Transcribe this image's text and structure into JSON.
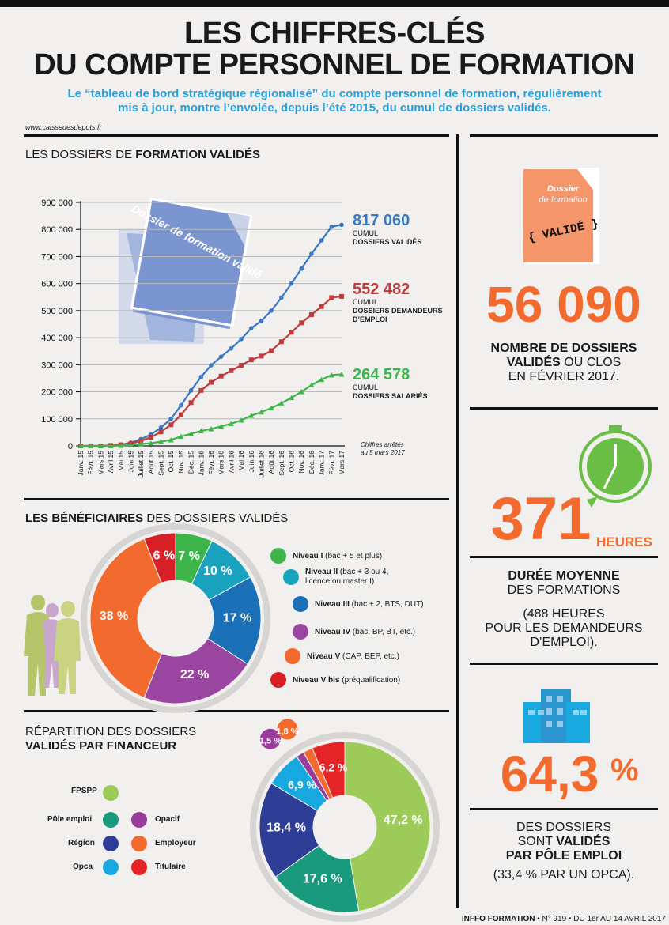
{
  "header": {
    "title_line1": "LES CHIFFRES-CLÉS",
    "title_line2": "DU COMPTE PERSONNEL DE FORMATION",
    "subtitle_line1": "Le “tableau de bord stratégique régionalisé” du compte personnel de formation, régulièrement",
    "subtitle_line2": "mis à jour, montre l’envolée, depuis l’été 2015, du cumul de dossiers validés.",
    "source": "www.caissedesdepots.fr"
  },
  "section1": {
    "title_plain": "LES DOSSIERS DE ",
    "title_bold": "FORMATION VALIDÉS",
    "illustration_text": "Dossier de formation validé",
    "note_line1": "Chiffres arrêtés",
    "note_line2": "au 5 mars 2017",
    "series_labels": [
      {
        "value": "817 060",
        "sub1": "CUMUL",
        "sub2": "DOSSIERS VALIDÉS",
        "sub3": ""
      },
      {
        "value": "552 482",
        "sub1": "CUMUL",
        "sub2": "DOSSIERS DEMANDEURS",
        "sub3": "D’EMPLOI"
      },
      {
        "value": "264 578",
        "sub1": "CUMUL",
        "sub2": "DOSSIERS SALARIÉS",
        "sub3": ""
      }
    ]
  },
  "section2": {
    "title_bold": "LES BÉNÉFICIAIRES",
    "title_plain": " DES DOSSIERS VALIDÉS",
    "legend": [
      {
        "bold": "Niveau I",
        "rest": " (bac + 5 et plus)",
        "rest2": "",
        "color": "#3db54a"
      },
      {
        "bold": "Niveau II",
        "rest": " (bac + 3 ou 4,",
        "rest2": "licence ou master I)",
        "color": "#19a3bf"
      },
      {
        "bold": "Niveau III",
        "rest": " (bac + 2, BTS, DUT)",
        "rest2": "",
        "color": "#1b70b8"
      },
      {
        "bold": "Niveau IV",
        "rest": " (bac, BP, BT, etc.)",
        "rest2": "",
        "color": "#9a45a0"
      },
      {
        "bold": "Niveau V",
        "rest": " (CAP, BEP, etc.)",
        "rest2": "",
        "color": "#f26a2e"
      },
      {
        "bold": "Niveau V bis",
        "rest": " (préqualification)",
        "rest2": "",
        "color": "#d71f26"
      }
    ]
  },
  "section3": {
    "title_line1": "RÉPARTITION DES DOSSIERS",
    "title_line2": "VALIDÉS PAR FINANCEUR",
    "legend_left": [
      {
        "label": "FPSPP",
        "color": "#9ccb5a"
      },
      {
        "label": "Pôle emploi",
        "color": "#199a7c"
      },
      {
        "label": "Région",
        "color": "#2e3e96"
      },
      {
        "label": "Opca",
        "color": "#18a8e0"
      }
    ],
    "legend_right": [
      {
        "label": "Opacif",
        "color": "#9a3c9c"
      },
      {
        "label": "Employeur",
        "color": "#f26a2e"
      },
      {
        "label": "Titulaire",
        "color": "#e52428"
      }
    ]
  },
  "right": {
    "folder_text1": "Dossier",
    "folder_text2": "de formation",
    "folder_stamp": "{ VALIDÉ }",
    "stat1_value": "56 090",
    "stat1_line1": "NOMBRE DE DOSSIERS",
    "stat1_line2_bold": "VALIDÉS",
    "stat1_line2_rest": " OU CLOS",
    "stat1_line3": "EN FÉVRIER 2017.",
    "stat2_value": "371",
    "stat2_unit": "HEURES",
    "stat2_line1": "DURÉE MOYENNE",
    "stat2_line2": "DES FORMATIONS",
    "stat2_line3": "(488 HEURES",
    "stat2_line4": "POUR LES DEMANDEURS",
    "stat2_line5": "D’EMPLOI).",
    "stat3_value": "64,3",
    "stat3_unit": "%",
    "stat3_line1": "DES DOSSIERS",
    "stat3_line2_plain": "SONT ",
    "stat3_line2_bold": "VALIDÉS",
    "stat3_line3": "PAR PÔLE EMPLOI",
    "stat3_line4": "(33,4 % PAR UN OPCA)."
  },
  "footer": {
    "brand": "INFFO FORMATION",
    "rest": " • N° 919 • DU 1er AU 14 AVRIL 2017"
  },
  "chart_data": [
    {
      "type": "line",
      "title": "LES DOSSIERS DE FORMATION VALIDÉS",
      "ylim": [
        0,
        900000
      ],
      "yticks": [
        "0",
        "100 000",
        "200 000",
        "300 000",
        "400 000",
        "500 000",
        "600 000",
        "700 000",
        "800 000",
        "900 000"
      ],
      "ytick_values": [
        0,
        100000,
        200000,
        300000,
        400000,
        500000,
        600000,
        700000,
        800000,
        900000
      ],
      "categories": [
        "Janv. 15",
        "Févr. 15",
        "Mars 15",
        "Avril 15",
        "Mai 15",
        "Juin 15",
        "Juillet 15",
        "Août 15",
        "Sept. 15",
        "Oct. 15",
        "Nov. 15",
        "Déc. 15",
        "Janv. 16",
        "Févr. 16",
        "Mars 16",
        "Avril 16",
        "Mai 16",
        "Juin 16",
        "Juillet 16",
        "Août 16",
        "Sept. 16",
        "Oct. 16",
        "Nov. 16",
        "Déc. 16",
        "Janv. 17",
        "Févr. 17",
        "Mars 17"
      ],
      "grid": true,
      "series": [
        {
          "name": "CUMUL DOSSIERS VALIDÉS",
          "color": "#3a78c2",
          "values": [
            0,
            0,
            0,
            2000,
            5000,
            12000,
            25000,
            42000,
            68000,
            100000,
            150000,
            205000,
            255000,
            298000,
            330000,
            360000,
            395000,
            435000,
            462000,
            500000,
            548000,
            600000,
            655000,
            710000,
            760000,
            810000,
            817060
          ]
        },
        {
          "name": "CUMUL DOSSIERS DEMANDEURS D’EMPLOI",
          "color": "#c23b3b",
          "values": [
            0,
            0,
            0,
            1500,
            4000,
            9000,
            18000,
            32000,
            52000,
            78000,
            115000,
            160000,
            205000,
            235000,
            258000,
            278000,
            298000,
            318000,
            332000,
            352000,
            385000,
            420000,
            455000,
            485000,
            515000,
            548000,
            552482
          ]
        },
        {
          "name": "CUMUL DOSSIERS SALARIÉS",
          "color": "#3db54a",
          "values": [
            0,
            0,
            0,
            500,
            1000,
            3000,
            7000,
            10000,
            16000,
            22000,
            35000,
            45000,
            55000,
            63000,
            72000,
            82000,
            95000,
            112000,
            125000,
            140000,
            158000,
            178000,
            200000,
            225000,
            245000,
            262000,
            264578
          ]
        }
      ]
    },
    {
      "type": "pie",
      "title": "LES BÉNÉFICIAIRES DES DOSSIERS VALIDÉS",
      "categories": [
        "Niveau I",
        "Niveau II",
        "Niveau III",
        "Niveau IV",
        "Niveau V",
        "Niveau V bis"
      ],
      "values": [
        7,
        10,
        17,
        22,
        38,
        6
      ],
      "labels": [
        "7 %",
        "10 %",
        "17 %",
        "22 %",
        "38 %",
        "6 %"
      ],
      "colors": [
        "#3db54a",
        "#19a3bf",
        "#1b70b8",
        "#9a45a0",
        "#f26a2e",
        "#d71f26"
      ]
    },
    {
      "type": "pie",
      "title": "RÉPARTITION DES DOSSIERS VALIDÉS PAR FINANCEUR",
      "categories": [
        "FPSPP",
        "Pôle emploi",
        "Région",
        "Opca",
        "Opacif",
        "Employeur",
        "Titulaire"
      ],
      "values": [
        47.2,
        17.6,
        18.4,
        6.9,
        1.5,
        1.8,
        6.2
      ],
      "labels": [
        "47,2 %",
        "17,6 %",
        "18,4 %",
        "6,9 %",
        "1,5 %",
        "1,8 %",
        "6,2 %"
      ],
      "colors": [
        "#9ccb5a",
        "#199a7c",
        "#2e3e96",
        "#18a8e0",
        "#9a3c9c",
        "#f26a2e",
        "#e52428"
      ]
    }
  ]
}
